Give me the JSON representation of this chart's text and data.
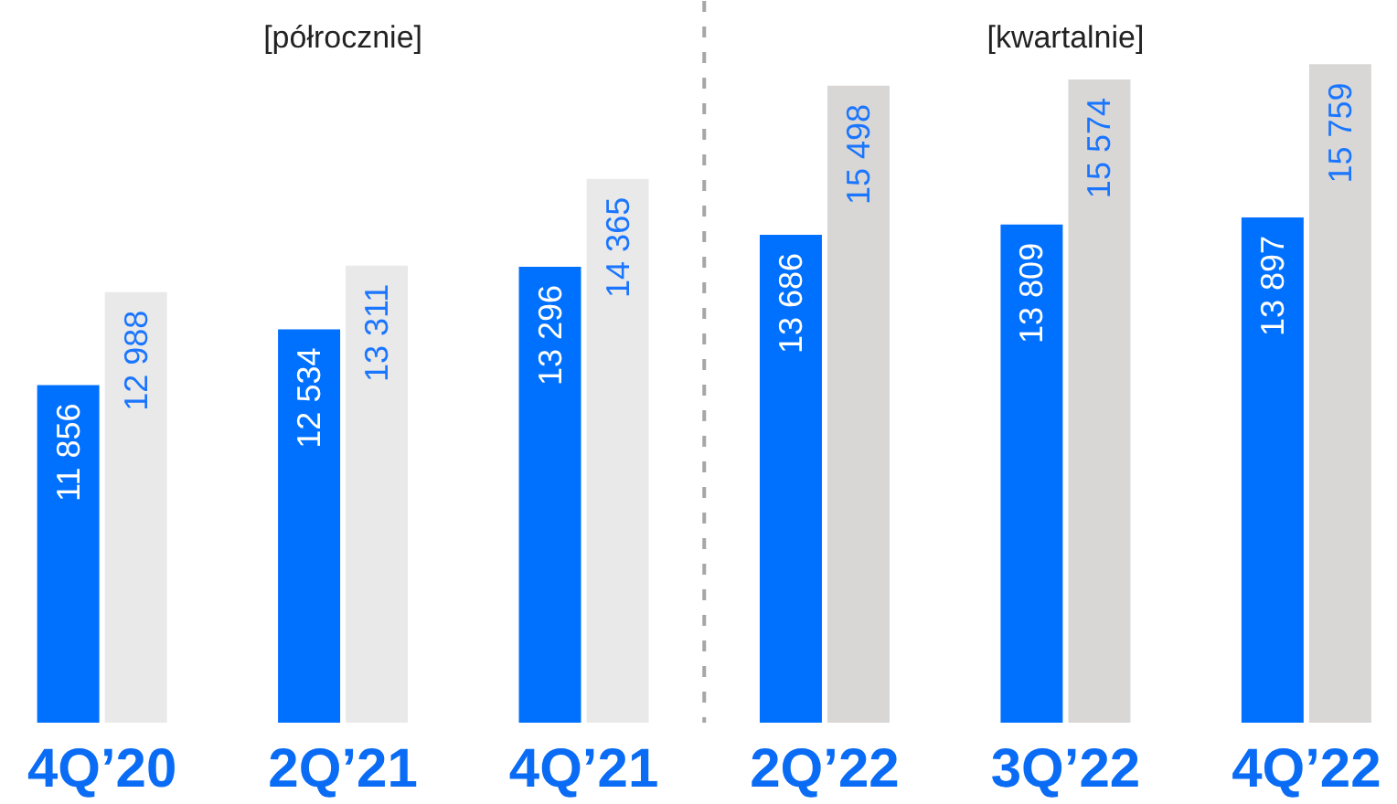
{
  "chart_data": {
    "type": "bar",
    "categories": [
      "4Q’20",
      "2Q’21",
      "4Q’21",
      "2Q’22",
      "3Q’22",
      "4Q’22"
    ],
    "series": [
      {
        "color": "#0070ff",
        "values": [
          11856,
          12534,
          13296,
          13686,
          13809,
          13897
        ],
        "value_labels": [
          "11 856",
          "12 534",
          "13 296",
          "13 686",
          "13 809",
          "13 897"
        ]
      },
      {
        "colors": [
          "#e9e9e9",
          "#e9e9e9",
          "#e9e9e9",
          "#d9d7d5",
          "#d9d7d5",
          "#d9d7d5"
        ],
        "values": [
          12988,
          13311,
          14365,
          15498,
          15574,
          15759
        ],
        "value_labels": [
          "12 988",
          "13 311",
          "14 365",
          "15 498",
          "15 574",
          "15 759"
        ]
      }
    ],
    "ylim": [
      7750,
      16530
    ],
    "tick_labels": "x",
    "annotations": [
      "[półrocznie]",
      "[kwartalnie]"
    ]
  }
}
